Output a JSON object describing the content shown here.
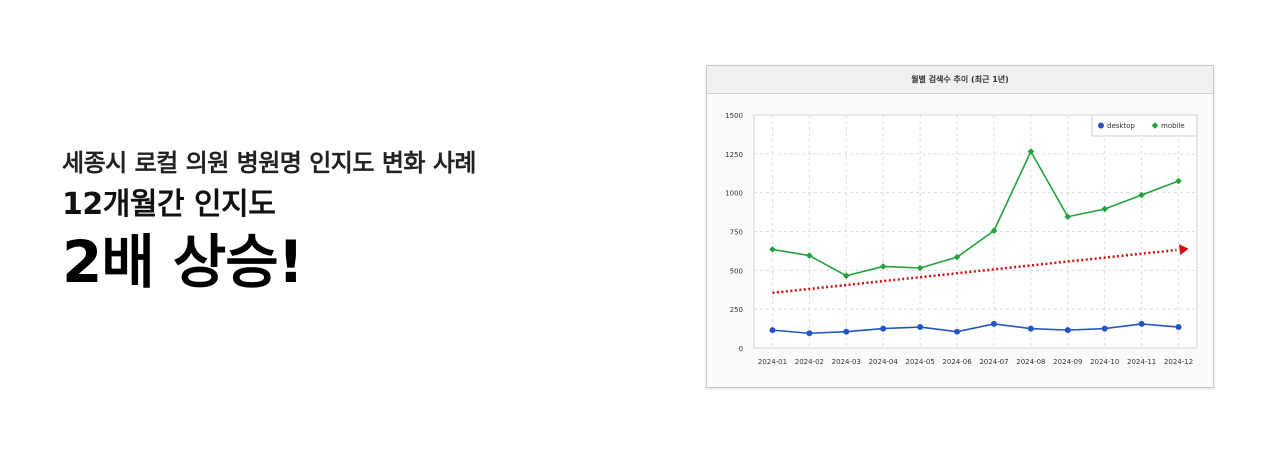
{
  "headline": {
    "line1": "세종시 로컬 의원 병원명 인지도 변화 사례",
    "line2": "12개월간 인지도",
    "line3": "2배 상승!"
  },
  "chart_data": {
    "type": "line",
    "title": "월별 검색수 추이 (최근 1년)",
    "categories": [
      "2024-01",
      "2024-02",
      "2024-03",
      "2024-04",
      "2024-05",
      "2024-06",
      "2024-07",
      "2024-08",
      "2024-09",
      "2024-10",
      "2024-11",
      "2024-12"
    ],
    "yticks": [
      "0",
      "250",
      "500",
      "750",
      "1000",
      "1250",
      "1500"
    ],
    "ylim": [
      0,
      1500
    ],
    "grid": true,
    "legend_position": "top-right",
    "series": [
      {
        "name": "desktop",
        "color": "#2356c4",
        "marker": "circle",
        "values": [
          115,
          95,
          105,
          125,
          135,
          105,
          155,
          125,
          115,
          125,
          155,
          135
        ]
      },
      {
        "name": "mobile",
        "color": "#22a23a",
        "marker": "diamond",
        "values": [
          635,
          595,
          465,
          525,
          515,
          585,
          755,
          1265,
          845,
          895,
          985,
          1075
        ]
      }
    ],
    "trend_arrow": {
      "color": "#cc1111",
      "style": "dotted",
      "from": 355,
      "to": 635
    }
  }
}
